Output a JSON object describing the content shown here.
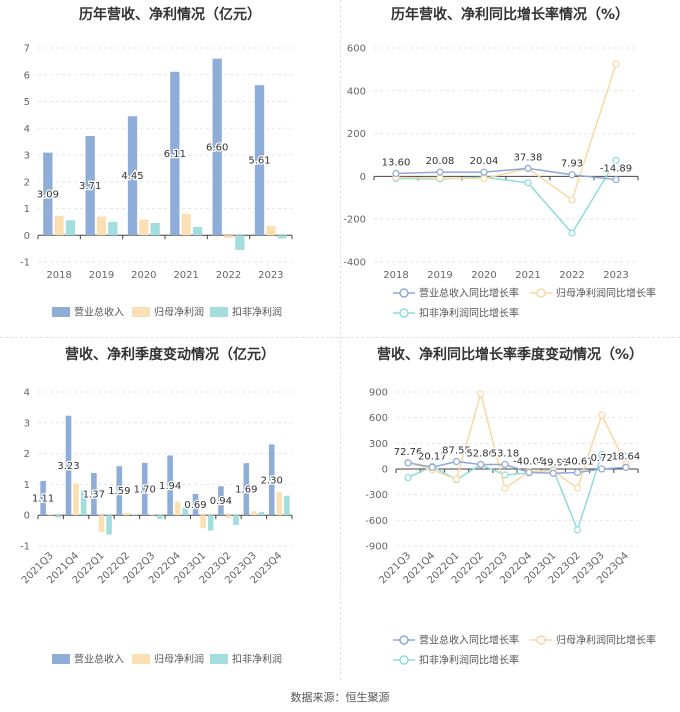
{
  "source": "数据来源：恒生聚源",
  "colors": {
    "revenue": "#8eadd9",
    "net_profit": "#fbe0b3",
    "deducted_profit": "#a3dede",
    "revenue_line": "#8fa8d6",
    "net_profit_line": "#f8d9a3",
    "deducted_line": "#8fdcdc"
  },
  "chart_data": [
    {
      "type": "bar",
      "title": "历年营收、净利情况（亿元）",
      "categories": [
        "2018",
        "2019",
        "2020",
        "2021",
        "2022",
        "2023"
      ],
      "ylim": [
        -1,
        7
      ],
      "yticks": [
        -1,
        0,
        1,
        2,
        3,
        4,
        5,
        6,
        7
      ],
      "legend": "bottom",
      "series": [
        {
          "name": "营业总收入",
          "values": [
            3.09,
            3.71,
            4.45,
            6.11,
            6.6,
            5.61
          ],
          "labels": [
            "3.09",
            "3.71",
            "4.45",
            "6.11",
            "6.60",
            "5.61"
          ]
        },
        {
          "name": "归母净利润",
          "values": [
            0.72,
            0.7,
            0.58,
            0.8,
            -0.1,
            0.35
          ]
        },
        {
          "name": "扣非净利润",
          "values": [
            0.56,
            0.5,
            0.46,
            0.31,
            -0.55,
            -0.12
          ]
        }
      ]
    },
    {
      "type": "line",
      "title": "历年营收、净利同比增长率情况（%）",
      "categories": [
        "2018",
        "2019",
        "2020",
        "2021",
        "2022",
        "2023"
      ],
      "ylim": [
        -400,
        600
      ],
      "yticks": [
        -400,
        -200,
        0,
        200,
        400,
        600
      ],
      "legend": "bottom",
      "series": [
        {
          "name": "营业总收入同比增长率",
          "values": [
            13.6,
            20.08,
            20.04,
            37.38,
            7.93,
            -14.89
          ],
          "labels": [
            "13.60",
            "20.08",
            "20.04",
            "37.38",
            "7.93",
            "-14.89"
          ]
        },
        {
          "name": "归母净利润同比增长率",
          "values": [
            -5,
            -8,
            -10,
            37,
            -110,
            525
          ]
        },
        {
          "name": "扣非净利润同比增长率",
          "values": [
            -10,
            -12,
            -4,
            -30,
            -265,
            75
          ]
        }
      ]
    },
    {
      "type": "bar",
      "title": "营收、净利季度变动情况（亿元）",
      "categories": [
        "2021Q3",
        "2021Q4",
        "2022Q1",
        "2022Q2",
        "2022Q3",
        "2022Q4",
        "2023Q1",
        "2023Q2",
        "2023Q3",
        "2023Q4"
      ],
      "ylim": [
        -1,
        4
      ],
      "yticks": [
        -1,
        0,
        1,
        2,
        3,
        4
      ],
      "legend": "bottom",
      "series": [
        {
          "name": "营业总收入",
          "values": [
            1.11,
            3.23,
            1.37,
            1.59,
            1.7,
            1.94,
            0.69,
            0.94,
            1.69,
            2.3
          ],
          "labels": [
            "1.11",
            "3.23",
            "1.37",
            "1.59",
            "1.70",
            "1.94",
            "0.69",
            "0.94",
            "1.69",
            "2.30"
          ]
        },
        {
          "name": "归母净利润",
          "values": [
            0.02,
            1.03,
            -0.55,
            0.08,
            0.03,
            0.44,
            -0.42,
            -0.1,
            0.13,
            0.75
          ]
        },
        {
          "name": "扣非净利润",
          "values": [
            -0.07,
            0.8,
            -0.63,
            0.02,
            -0.12,
            0.25,
            -0.5,
            -0.32,
            0.1,
            0.63
          ]
        }
      ]
    },
    {
      "type": "line",
      "title": "营收、净利同比增长率季度变动情况（%）",
      "categories": [
        "2021Q3",
        "2021Q4",
        "2022Q1",
        "2022Q2",
        "2022Q3",
        "2022Q4",
        "2023Q1",
        "2023Q2",
        "2023Q3",
        "2023Q4"
      ],
      "ylim": [
        -900,
        900
      ],
      "yticks": [
        -900,
        -600,
        -300,
        0,
        300,
        600,
        900
      ],
      "legend": "bottom",
      "series": [
        {
          "name": "营业总收入同比增长率",
          "values": [
            72.76,
            20.17,
            87.55,
            52.86,
            53.18,
            -40.05,
            -49.99,
            -40.61,
            0.72,
            18.64
          ],
          "labels": [
            "72.76",
            "20.17",
            "87.55",
            "52.86",
            "53.18",
            "-40.05",
            "-49.99",
            "-40.61",
            "0.72",
            "18.64"
          ]
        },
        {
          "name": "归母净利润同比增长率",
          "values": [
            75,
            -10,
            -120,
            880,
            -225,
            -30,
            -20,
            -225,
            630,
            60
          ]
        },
        {
          "name": "扣非净利润同比增长率",
          "values": [
            -100,
            30,
            -125,
            50,
            -70,
            -45,
            -10,
            -710,
            170,
            150
          ]
        }
      ]
    }
  ]
}
